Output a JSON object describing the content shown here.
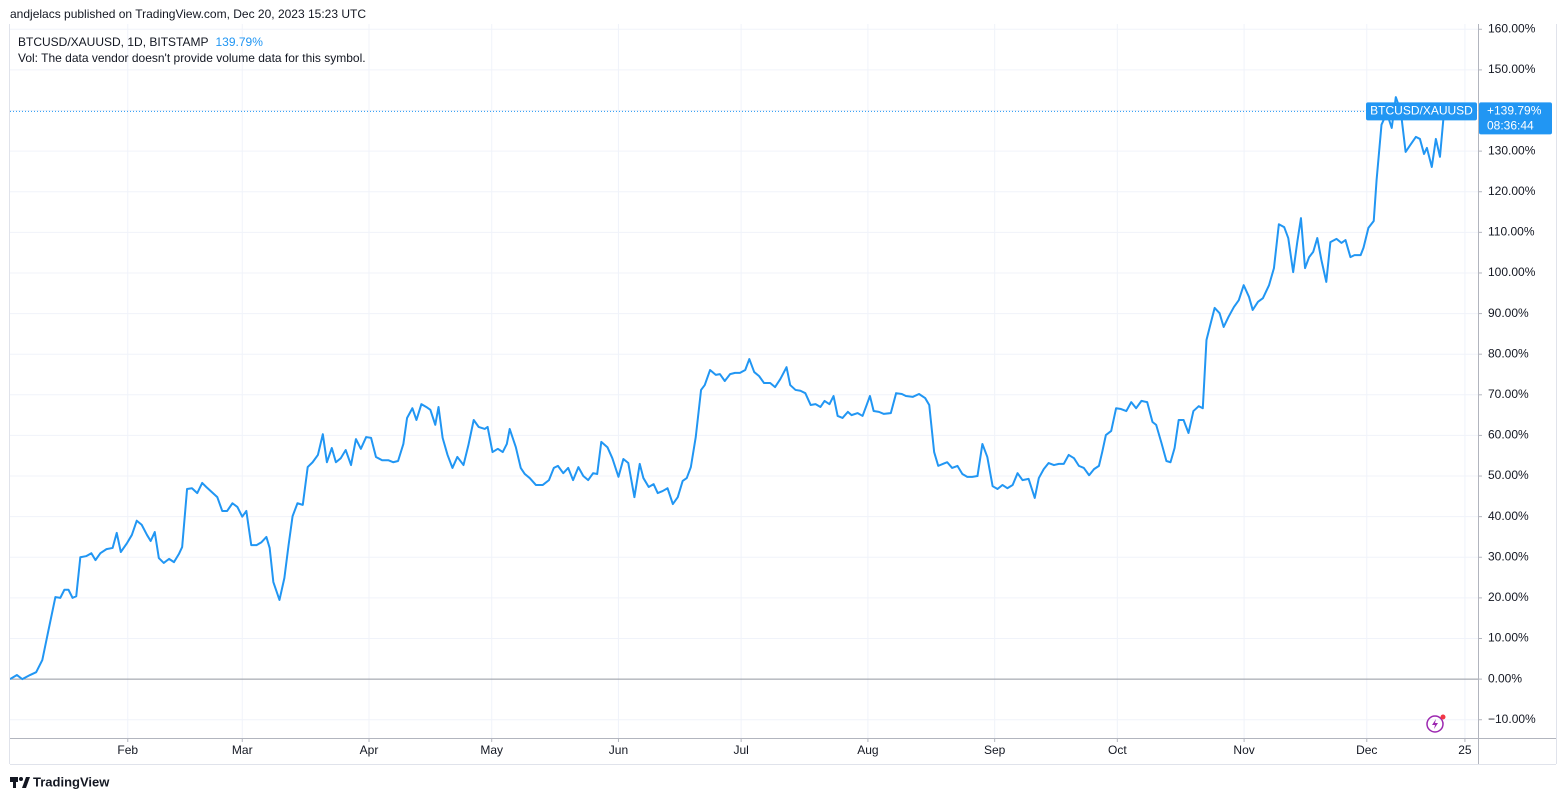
{
  "header": {
    "text": "andjelacs published on TradingView.com, Dec 20, 2023 15:23 UTC"
  },
  "footer": {
    "brand": "TradingView"
  },
  "chart_data": {
    "type": "line",
    "symbol": "BTCUSD/XAUUSD, 1D, BITSTAMP",
    "legend_value": "139.79%",
    "volume_note": "Vol: The data vendor doesn't provide volume data for this symbol.",
    "price_label": "+139.79%",
    "countdown": "08:36:44",
    "x": [
      2.2,
      3.9,
      5.2,
      7.1,
      8.6,
      10.1,
      11.6,
      13.3,
      14.5,
      15.5,
      16.5,
      17.5,
      18.4,
      19.4,
      20.9,
      22.1,
      23.1,
      24.3,
      25.8,
      27.3,
      28.3,
      29.3,
      30.7,
      32.0,
      33.2,
      34.4,
      35.7,
      36.6,
      37.6,
      38.6,
      39.8,
      41.1,
      42.3,
      43.5,
      44.3,
      45.5,
      46.7,
      48.0,
      49.2,
      50.2,
      51.6,
      52.9,
      54.1,
      55.3,
      56.6,
      57.8,
      59.0,
      60.0,
      61.2,
      62.5,
      63.7,
      64.9,
      65.7,
      66.6,
      68.1,
      69.3,
      70.3,
      71.3,
      72.5,
      73.8,
      75.0,
      76.2,
      77.5,
      78.7,
      79.7,
      80.9,
      81.9,
      83.1,
      84.3,
      85.6,
      86.8,
      88.0,
      89.3,
      90.5,
      91.7,
      93.2,
      94.7,
      95.9,
      97.1,
      98.4,
      99.3,
      100.6,
      101.6,
      102.8,
      104.0,
      105.0,
      106.2,
      107.0,
      108.0,
      109.2,
      110.4,
      111.6,
      113.1,
      114.3,
      115.6,
      116.8,
      118.3,
      119.0,
      120.2,
      121.5,
      122.7,
      123.7,
      124.4,
      125.9,
      127.1,
      128.1,
      129.3,
      130.8,
      132.5,
      134.0,
      135.2,
      136.2,
      137.5,
      138.7,
      139.9,
      141.2,
      142.4,
      143.6,
      144.8,
      145.8,
      146.8,
      148.3,
      149.5,
      151.0,
      152.2,
      153.4,
      154.9,
      156.2,
      157.1,
      158.4,
      159.6,
      160.6,
      161.8,
      163.0,
      164.3,
      165.5,
      166.7,
      167.7,
      168.7,
      169.9,
      171.2,
      172.1,
      173.4,
      174.8,
      175.8,
      177.0,
      178.3,
      179.5,
      180.7,
      182.0,
      183.0,
      184.2,
      185.4,
      186.6,
      188.1,
      189.3,
      190.6,
      192.1,
      193.0,
      194.3,
      195.5,
      196.7,
      198.0,
      199.2,
      200.4,
      201.4,
      202.6,
      203.6,
      204.6,
      205.8,
      207.1,
      208.0,
      209.5,
      210.7,
      211.7,
      212.5,
      213.4,
      214.7,
      215.9,
      217.6,
      218.9,
      220.3,
      221.3,
      223.0,
      224.5,
      226.0,
      227.0,
      228.2,
      229.2,
      230.4,
      231.4,
      232.6,
      233.9,
      235.1,
      236.3,
      237.5,
      238.8,
      240.0,
      241.2,
      242.5,
      243.7,
      244.9,
      246.1,
      247.4,
      248.6,
      249.8,
      251.3,
      252.8,
      253.8,
      255.0,
      256.2,
      257.5,
      258.7,
      259.9,
      261.1,
      262.4,
      263.6,
      264.8,
      266.1,
      267.3,
      268.5,
      269.3,
      270.2,
      271.5,
      272.7,
      273.9,
      275.2,
      276.4,
      277.6,
      278.9,
      280.3,
      281.6,
      282.5,
      283.8,
      285.0,
      286.0,
      287.0,
      288.0,
      289.2,
      290.4,
      291.6,
      292.9,
      293.9,
      294.8,
      295.6,
      296.8,
      298.0,
      299.0,
      300.2,
      301.5,
      302.7,
      303.9,
      305.2,
      306.1,
      307.4,
      308.6,
      310.1,
      311.3,
      312.5,
      313.8,
      314.8,
      316.0,
      317.0,
      317.9,
      318.9,
      319.9,
      320.9,
      321.9,
      322.9,
      324.1,
      325.1,
      326.6,
      327.8,
      328.8,
      330.0,
      331.0,
      332.5,
      333.2,
      334.4,
      335.7,
      336.4,
      337.6,
      338.9,
      340.1,
      341.1,
      342.3,
      343.5,
      344.5,
      346.0,
      347.0,
      348.0,
      348.7,
      349.9,
      350.9,
      351.9,
      352.9
    ],
    "series": [
      {
        "name": "BTCUSD/XAUUSD",
        "color": "#2196f3",
        "values": [
          0,
          1,
          0,
          1,
          1.7,
          4.7,
          12,
          20.2,
          20,
          22,
          22,
          20,
          20.4,
          30,
          30.3,
          31,
          29.3,
          31,
          32,
          32.3,
          36,
          31.3,
          33.3,
          35.5,
          39,
          38,
          35.5,
          34,
          36.2,
          29.8,
          28.6,
          29.6,
          28.8,
          30.8,
          32.5,
          46.8,
          47,
          45.8,
          48.3,
          47.3,
          46,
          44.8,
          41.4,
          41.4,
          43.3,
          42.4,
          40,
          41.4,
          33,
          33,
          33.7,
          35,
          32.3,
          23.9,
          19.5,
          24.9,
          32.8,
          40.1,
          43.3,
          42.9,
          52.2,
          53.4,
          55.2,
          60.3,
          53.4,
          56.9,
          53.4,
          54.4,
          56.4,
          52.7,
          59.1,
          56.7,
          59.6,
          59.4,
          54.7,
          53.9,
          53.9,
          53.4,
          53.7,
          57.9,
          64.3,
          66.7,
          63.8,
          67.7,
          67,
          66.3,
          62.6,
          67,
          59.4,
          55.2,
          52,
          54.7,
          52.7,
          57.6,
          63.8,
          62.1,
          61.6,
          62.1,
          55.9,
          56.7,
          55.9,
          57.9,
          61.6,
          57.1,
          52,
          50.5,
          49.5,
          47.8,
          47.8,
          49,
          52,
          52.5,
          50.7,
          52,
          49,
          52.2,
          50,
          49,
          50.7,
          50.5,
          58.4,
          57.1,
          54.4,
          49.8,
          54.2,
          53.2,
          44.8,
          53,
          49.5,
          47.3,
          48,
          45.8,
          46.3,
          47,
          43.1,
          44.8,
          48.8,
          49.5,
          52.2,
          59.6,
          71.2,
          72.4,
          76.1,
          74.9,
          75.1,
          73.4,
          75.1,
          75.4,
          75.4,
          76.1,
          78.8,
          75.6,
          74.6,
          72.9,
          72.9,
          71.9,
          73.9,
          76.8,
          72.4,
          71.2,
          71,
          70.4,
          67.5,
          67.7,
          67,
          68.5,
          67.7,
          69.7,
          64.8,
          64.3,
          65.8,
          65,
          65.5,
          64.8,
          67.5,
          69.7,
          66,
          65.8,
          65.3,
          65.5,
          70.4,
          70.2,
          69.7,
          69.5,
          70.2,
          69.2,
          67.5,
          55.9,
          52.5,
          53,
          53.4,
          52,
          52.5,
          50.5,
          49.8,
          49.8,
          50,
          57.9,
          54.7,
          47.5,
          46.8,
          47.8,
          47,
          47.8,
          50.7,
          49,
          49.3,
          44.6,
          49.5,
          51.7,
          53.2,
          52.7,
          53,
          53,
          55.2,
          54.4,
          52.5,
          52,
          50.2,
          51.7,
          52.5,
          55.9,
          60.1,
          61.1,
          66.7,
          66.5,
          66,
          68.2,
          66.7,
          68.5,
          68.2,
          63.3,
          62.6,
          58.1,
          53.7,
          53.4,
          56.9,
          63.8,
          63.8,
          60.6,
          66,
          67.2,
          66.7,
          83.5,
          86.7,
          91.4,
          90.1,
          86.7,
          89.2,
          91.6,
          93.3,
          97,
          94.1,
          90.9,
          92.9,
          93.8,
          97,
          101.2,
          112,
          111.3,
          108.6,
          100.2,
          107.6,
          113.5,
          101.2,
          103.9,
          105.2,
          108.6,
          103.2,
          97.8,
          107.6,
          108.4,
          107.4,
          108.1,
          103.9,
          104.4,
          104.4,
          106.2,
          111.1,
          112.8,
          122.9,
          136.5,
          139.4,
          135.7,
          143.3,
          139.9,
          129.8,
          131.3,
          133.5,
          133,
          129.3,
          130.8,
          126.1,
          133,
          128.6,
          139.79
        ]
      }
    ],
    "xlim": [
      2.2,
      361.2
    ],
    "xticks": [
      {
        "value": 31,
        "label": "Feb"
      },
      {
        "value": 59,
        "label": "Mar"
      },
      {
        "value": 90,
        "label": "Apr"
      },
      {
        "value": 120,
        "label": "May"
      },
      {
        "value": 151,
        "label": "Jun"
      },
      {
        "value": 181,
        "label": "Jul"
      },
      {
        "value": 212,
        "label": "Aug"
      },
      {
        "value": 243,
        "label": "Sep"
      },
      {
        "value": 273,
        "label": "Oct"
      },
      {
        "value": 304,
        "label": "Nov"
      },
      {
        "value": 334,
        "label": "Dec"
      },
      {
        "value": 358,
        "label": "25"
      }
    ],
    "ylim": [
      -14.5,
      161.3
    ],
    "yticks": [
      {
        "value": -10,
        "label": "−10.00%"
      },
      {
        "value": 0,
        "label": "0.00%"
      },
      {
        "value": 10,
        "label": "10.00%"
      },
      {
        "value": 20,
        "label": "20.00%"
      },
      {
        "value": 30,
        "label": "30.00%"
      },
      {
        "value": 40,
        "label": "40.00%"
      },
      {
        "value": 50,
        "label": "50.00%"
      },
      {
        "value": 60,
        "label": "60.00%"
      },
      {
        "value": 70,
        "label": "70.00%"
      },
      {
        "value": 80,
        "label": "80.00%"
      },
      {
        "value": 90,
        "label": "90.00%"
      },
      {
        "value": 100,
        "label": "100.00%"
      },
      {
        "value": 110,
        "label": "110.00%"
      },
      {
        "value": 120,
        "label": "120.00%"
      },
      {
        "value": 130,
        "label": "130.00%"
      },
      {
        "value": 140,
        "label": "140.00%"
      },
      {
        "value": 150,
        "label": "150.00%"
      },
      {
        "value": 160,
        "label": "160.00%"
      }
    ],
    "baseline": 0,
    "grid": true
  }
}
